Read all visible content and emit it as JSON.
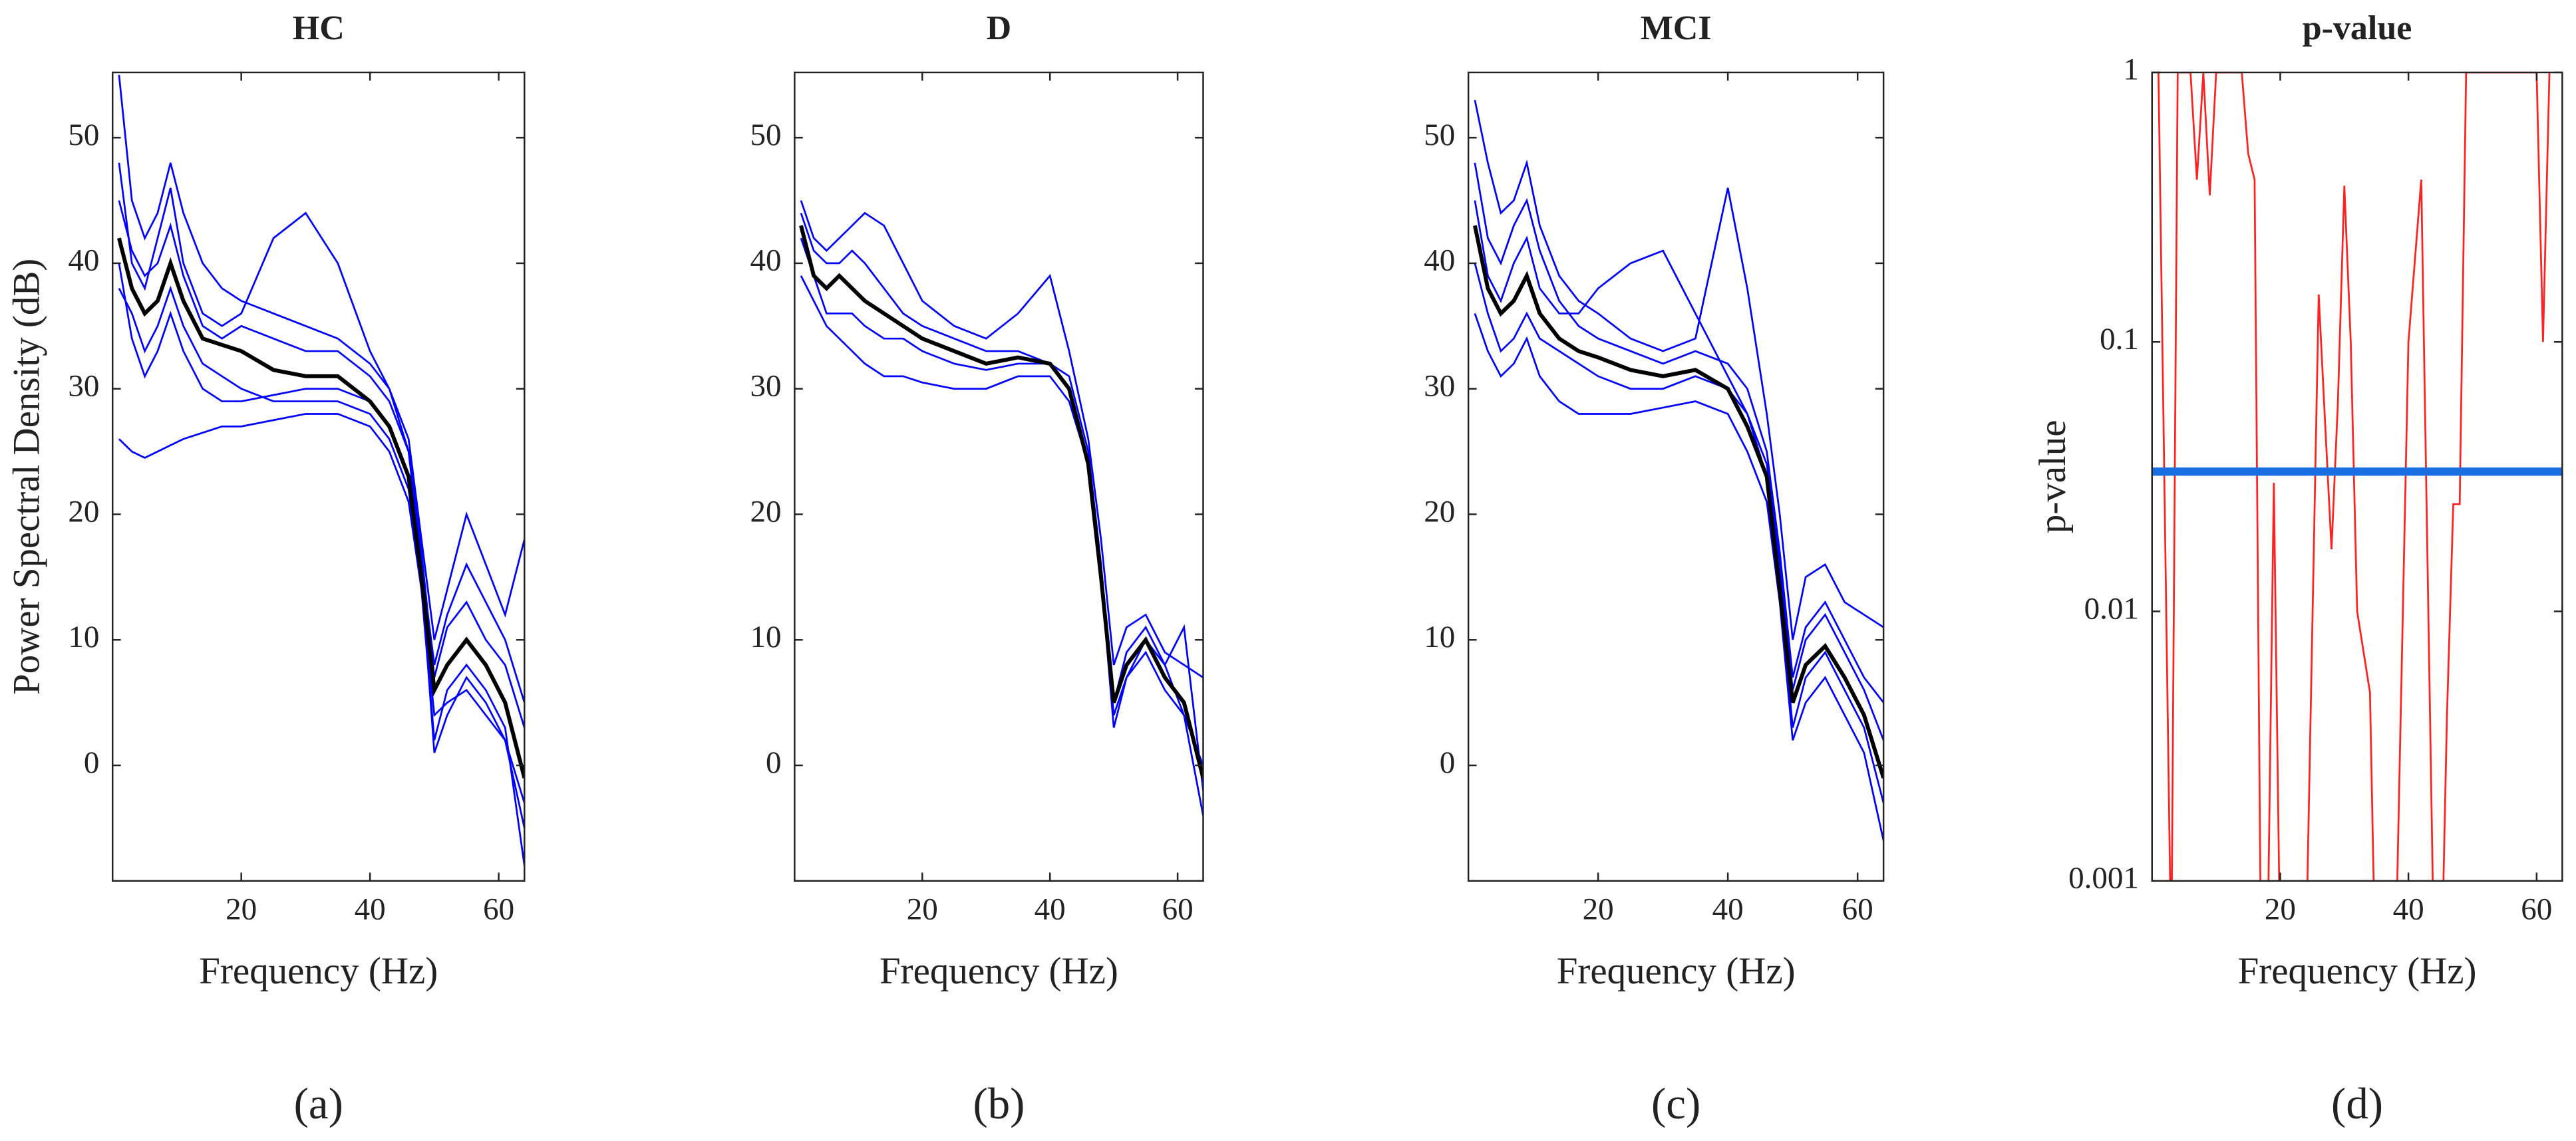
{
  "chart_data": [
    {
      "type": "line",
      "title": "HC",
      "xlabel": "Frequency (Hz)",
      "ylabel": "Power Spectral Density (dB)",
      "caption": "(a)",
      "x": [
        1,
        3,
        5,
        7,
        9,
        11,
        14,
        17,
        20,
        25,
        30,
        35,
        40,
        43,
        46,
        48,
        50,
        52,
        55,
        58,
        61,
        64
      ],
      "xlim": [
        0,
        64
      ],
      "ylim": [
        -9.2,
        55.2
      ],
      "xticks": [
        20,
        40,
        60
      ],
      "yticks": [
        0,
        10,
        20,
        30,
        40,
        50
      ],
      "series": [
        {
          "color": "#0000ff",
          "values": [
            55,
            45,
            42,
            44,
            48,
            44,
            40,
            38,
            37,
            36,
            35,
            34,
            32,
            30,
            26,
            18,
            10,
            14,
            20,
            16,
            12,
            18
          ]
        },
        {
          "color": "#0000ff",
          "values": [
            26,
            25,
            24.5,
            25,
            25.5,
            26,
            26.5,
            27,
            27,
            27.5,
            28,
            28,
            27,
            25,
            21,
            14,
            4,
            5,
            6,
            4,
            2,
            -5
          ]
        },
        {
          "color": "#0000ff",
          "values": [
            48,
            40,
            38,
            42,
            46,
            40,
            36,
            35,
            36,
            42,
            44,
            40,
            33,
            30,
            25,
            17,
            7,
            11,
            13,
            10,
            8,
            3
          ]
        },
        {
          "color": "#0000ff",
          "values": [
            38,
            36,
            33,
            35,
            38,
            35,
            32,
            31,
            30,
            29,
            29,
            29,
            28,
            26,
            22,
            14,
            2,
            6,
            8,
            6,
            3,
            -8
          ]
        },
        {
          "color": "#0000ff",
          "values": [
            45,
            41,
            39,
            40,
            43,
            39,
            35,
            34,
            35,
            34,
            33,
            33,
            31,
            29,
            25,
            16,
            8,
            12,
            16,
            13,
            10,
            5
          ]
        },
        {
          "color": "#0000ff",
          "values": [
            40,
            34,
            31,
            33,
            36,
            33,
            30,
            29,
            29,
            29.5,
            30,
            30,
            29,
            27,
            23,
            15,
            1,
            4,
            7,
            5,
            2,
            -3
          ]
        },
        {
          "color": "#000000",
          "values": [
            42,
            38,
            36,
            37,
            40,
            37,
            34,
            33.5,
            33,
            31.5,
            31,
            31,
            29,
            27,
            23,
            15,
            6,
            8,
            10,
            8,
            5,
            -1
          ]
        }
      ]
    },
    {
      "type": "line",
      "title": "D",
      "xlabel": "Frequency (Hz)",
      "caption": "(b)",
      "x": [
        1,
        3,
        5,
        7,
        9,
        11,
        14,
        17,
        20,
        25,
        30,
        35,
        40,
        43,
        46,
        48,
        50,
        52,
        55,
        58,
        61,
        64
      ],
      "xlim": [
        0,
        64
      ],
      "ylim": [
        -9.2,
        55.2
      ],
      "xticks": [
        20,
        40,
        60
      ],
      "yticks": [
        0,
        10,
        20,
        30,
        40,
        50
      ],
      "series": [
        {
          "color": "#0000ff",
          "values": [
            45,
            42,
            41,
            42,
            43,
            44,
            43,
            40,
            37,
            35,
            34,
            36,
            39,
            33,
            26,
            18,
            8,
            11,
            12,
            9,
            8,
            7
          ]
        },
        {
          "color": "#0000ff",
          "values": [
            39,
            37,
            35,
            34,
            33,
            32,
            31,
            31,
            30.5,
            30,
            30,
            31,
            31,
            29,
            24,
            15,
            4,
            7,
            9,
            6,
            4,
            -4
          ]
        },
        {
          "color": "#0000ff",
          "values": [
            44,
            41,
            40,
            40,
            41,
            40,
            38,
            36,
            35,
            34,
            33,
            33,
            32,
            31,
            25,
            16,
            5,
            9,
            11,
            8,
            11,
            -2
          ]
        },
        {
          "color": "#0000ff",
          "values": [
            42,
            39,
            36,
            36,
            36,
            35,
            34,
            34,
            33,
            32,
            31.5,
            32,
            32,
            30,
            24,
            15,
            3,
            7,
            10,
            8,
            4,
            0
          ]
        },
        {
          "color": "#000000",
          "values": [
            43,
            39,
            38,
            39,
            38,
            37,
            36,
            35,
            34,
            33,
            32,
            32.5,
            32,
            30,
            24,
            15,
            5,
            8,
            10,
            7,
            5,
            -1
          ]
        }
      ]
    },
    {
      "type": "line",
      "title": "MCI",
      "xlabel": "Frequency (Hz)",
      "caption": "(c)",
      "x": [
        1,
        3,
        5,
        7,
        9,
        11,
        14,
        17,
        20,
        25,
        30,
        35,
        40,
        43,
        46,
        48,
        50,
        52,
        55,
        58,
        61,
        64
      ],
      "xlim": [
        0,
        64
      ],
      "ylim": [
        -9.2,
        55.2
      ],
      "xticks": [
        20,
        40,
        60
      ],
      "yticks": [
        0,
        10,
        20,
        30,
        40,
        50
      ],
      "series": [
        {
          "color": "#0000ff",
          "values": [
            53,
            48,
            44,
            45,
            48,
            43,
            39,
            37,
            36,
            34,
            33,
            34,
            46,
            38,
            28,
            20,
            10,
            15,
            16,
            13,
            12,
            11
          ]
        },
        {
          "color": "#0000ff",
          "values": [
            36,
            33,
            31,
            32,
            34,
            31,
            29,
            28,
            28,
            28,
            28.5,
            29,
            28,
            25,
            21,
            13,
            2,
            5,
            7,
            4,
            1,
            -6
          ]
        },
        {
          "color": "#0000ff",
          "values": [
            48,
            42,
            40,
            43,
            45,
            41,
            37,
            35,
            34,
            33,
            32,
            33,
            32,
            30,
            25,
            17,
            7,
            11,
            13,
            10,
            7,
            5
          ]
        },
        {
          "color": "#0000ff",
          "values": [
            40,
            36,
            33,
            34,
            36,
            34,
            33,
            32,
            31,
            30,
            30,
            31,
            30,
            28,
            23,
            14,
            3,
            7,
            9,
            6,
            3,
            -3
          ]
        },
        {
          "color": "#0000ff",
          "values": [
            45,
            39,
            37,
            40,
            42,
            38,
            36,
            36,
            38,
            40,
            41,
            36,
            31,
            28,
            24,
            16,
            6,
            10,
            12,
            9,
            6,
            2
          ]
        },
        {
          "color": "#000000",
          "values": [
            43,
            38,
            36,
            37,
            39,
            36,
            34,
            33,
            32.5,
            31.5,
            31,
            31.5,
            30,
            27,
            23,
            14,
            5,
            8,
            9.5,
            7,
            4,
            -1
          ]
        }
      ]
    },
    {
      "type": "line",
      "title": "p-value",
      "xlabel": "Frequency (Hz)",
      "ylabel": "p-value",
      "caption": "(d)",
      "yscale": "log",
      "x": [
        1,
        3,
        4,
        6,
        7,
        8,
        9,
        10,
        11,
        12,
        14,
        15,
        16,
        17,
        18,
        19,
        20,
        24,
        26,
        27,
        28,
        29,
        30,
        31,
        32,
        34,
        35,
        38,
        40,
        42,
        44,
        45,
        46,
        47,
        48,
        49,
        60,
        61,
        62
      ],
      "xlim": [
        0,
        64
      ],
      "ylim": [
        0.001,
        1
      ],
      "xticks": [
        20,
        40,
        60
      ],
      "yticks": [
        0.001,
        0.01,
        0.1,
        1
      ],
      "threshold": 0.033,
      "threshold_color": "#1a6fe0",
      "series": [
        {
          "color": "#ff2020",
          "values": [
            1,
            0.0005,
            1,
            1,
            0.4,
            1,
            0.35,
            1,
            1,
            1,
            1,
            0.5,
            0.4,
            0.0005,
            0.0005,
            0.03,
            0.0005,
            0.0005,
            0.15,
            0.05,
            0.017,
            0.06,
            0.38,
            0.1,
            0.01,
            0.005,
            0.0003,
            0.0005,
            0.1,
            0.4,
            0.0005,
            0.0003,
            0.004,
            0.025,
            0.025,
            1,
            1,
            0.1,
            1
          ]
        }
      ]
    }
  ]
}
